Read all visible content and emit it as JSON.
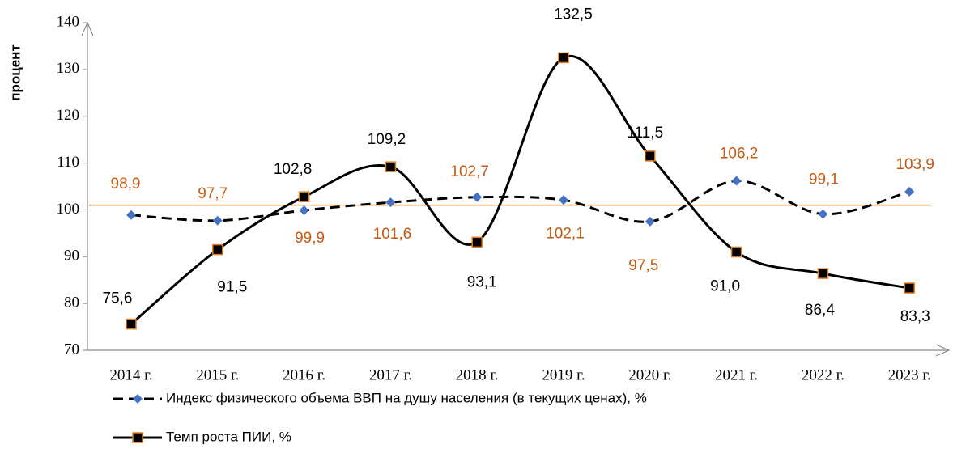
{
  "chart_data": {
    "type": "line",
    "y_label": "процент",
    "categories": [
      "2014 г.",
      "2015 г.",
      "2016 г.",
      "2017 г.",
      "2018 г.",
      "2019 г.",
      "2020 г.",
      "2021 г.",
      "2022 г.",
      "2023 г."
    ],
    "series": [
      {
        "name": "Индекс физического объема ВВП на душу населения (в текущих ценах), %",
        "color": "#000000",
        "marker_color": "#4472c4",
        "label_color": "#c55a11",
        "dashed": true,
        "marker": "diamond",
        "values": [
          98.9,
          97.7,
          99.9,
          101.6,
          102.7,
          102.1,
          97.5,
          106.2,
          99.1,
          103.9
        ],
        "value_labels": [
          "98,9",
          "97,7",
          "99,9",
          "101,6",
          "102,7",
          "102,1",
          "97,5",
          "106,2",
          "99,1",
          "103,9"
        ]
      },
      {
        "name": "Темп роста ПИИ, %",
        "color": "#000000",
        "marker_color": "#e07b1a",
        "label_color": "#000000",
        "dashed": false,
        "marker": "square",
        "values": [
          75.6,
          91.5,
          102.8,
          109.2,
          93.1,
          132.5,
          111.5,
          91.0,
          86.4,
          83.3
        ],
        "value_labels": [
          "75,6",
          "91,5",
          "102,8",
          "109,2",
          "93,1",
          "132,5",
          "111,5",
          "91,0",
          "86,4",
          "83,3"
        ]
      }
    ],
    "reference_line": {
      "value": 101,
      "color": "#e8954a"
    },
    "ylim": [
      70,
      140
    ],
    "yticks": [
      70,
      80,
      90,
      100,
      110,
      120,
      130,
      140
    ],
    "smooth": true
  }
}
